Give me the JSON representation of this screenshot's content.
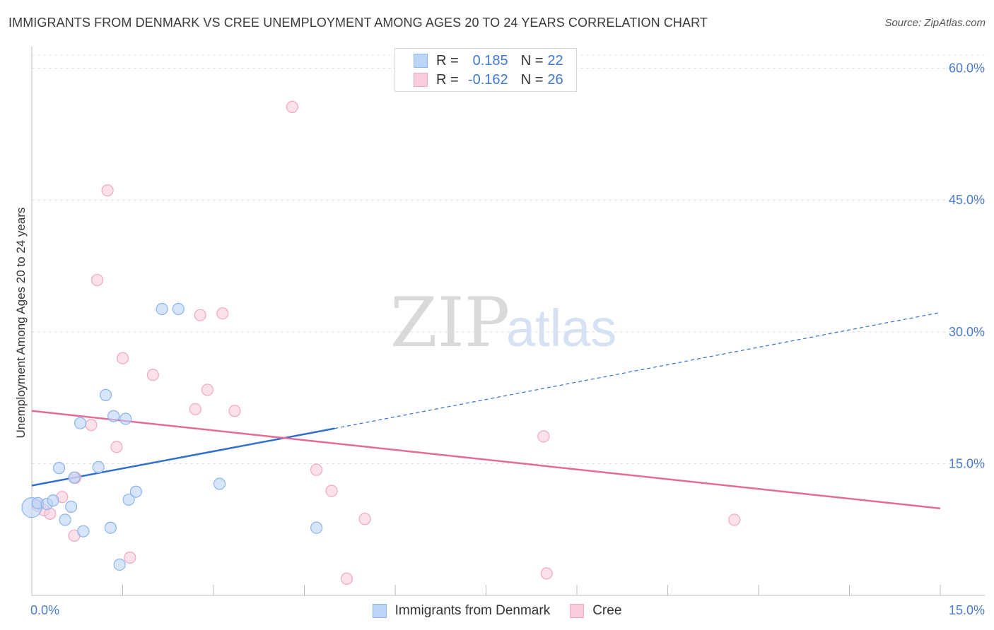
{
  "title": "IMMIGRANTS FROM DENMARK VS CREE UNEMPLOYMENT AMONG AGES 20 TO 24 YEARS CORRELATION CHART",
  "source": "Source: ZipAtlas.com",
  "watermark": {
    "zip": "ZIP",
    "atlas": "atlas"
  },
  "legend": {
    "r_label": "R =",
    "n_label": "N =",
    "rows": [
      {
        "r": "0.185",
        "n": "22"
      },
      {
        "r": "-0.162",
        "n": "26"
      }
    ]
  },
  "chart_data": {
    "type": "scatter",
    "title": "IMMIGRANTS FROM DENMARK VS CREE UNEMPLOYMENT AMONG AGES 20 TO 24 YEARS CORRELATION CHART",
    "xlabel": "",
    "ylabel": "Unemployment Among Ages 20 to 24 years",
    "xlim": [
      0,
      15
    ],
    "ylim": [
      0,
      61.5
    ],
    "x_tick_labels": [
      {
        "value": 0,
        "label": "0.0%"
      },
      {
        "value": 15,
        "label": "15.0%"
      }
    ],
    "y_tick_labels": [
      {
        "value": 15,
        "label": "15.0%"
      },
      {
        "value": 30,
        "label": "30.0%"
      },
      {
        "value": 45,
        "label": "45.0%"
      },
      {
        "value": 60,
        "label": "60.0%"
      }
    ],
    "x_minor_ticks": [
      1.5,
      3,
      4.5,
      6,
      7.5,
      9,
      10.5,
      12,
      13.5,
      15
    ],
    "grid": "horizontal dashed",
    "series": [
      {
        "name": "Immigrants from Denmark",
        "color": "#8ab4ee",
        "fill": "#bcd4f6",
        "line_color": "#2f6fd0",
        "points": [
          [
            0.0,
            10.0
          ],
          [
            0.1,
            10.5
          ],
          [
            0.25,
            10.4
          ],
          [
            0.35,
            10.8
          ],
          [
            0.45,
            14.5
          ],
          [
            0.55,
            8.6
          ],
          [
            0.65,
            10.1
          ],
          [
            0.8,
            19.6
          ],
          [
            0.85,
            7.3
          ],
          [
            0.7,
            13.4
          ],
          [
            1.1,
            14.6
          ],
          [
            1.22,
            22.8
          ],
          [
            1.3,
            7.7
          ],
          [
            1.35,
            20.4
          ],
          [
            1.45,
            3.5
          ],
          [
            1.55,
            20.1
          ],
          [
            1.6,
            10.9
          ],
          [
            1.72,
            11.8
          ],
          [
            2.15,
            32.6
          ],
          [
            2.42,
            32.6
          ],
          [
            3.1,
            12.7
          ],
          [
            4.7,
            7.7
          ]
        ],
        "trend": {
          "x0": 0,
          "y0": 12.5,
          "x1": 5.0,
          "y1": 19.0,
          "dash_to_x": 15.0,
          "dash_to_y": 32.2
        }
      },
      {
        "name": "Cree",
        "color": "#f2a7bd",
        "fill": "#f9cdda",
        "line_color": "#e46a97",
        "points": [
          [
            0.1,
            10.2
          ],
          [
            0.2,
            9.7
          ],
          [
            0.3,
            9.3
          ],
          [
            0.5,
            11.2
          ],
          [
            0.7,
            6.8
          ],
          [
            0.98,
            19.4
          ],
          [
            0.72,
            13.4
          ],
          [
            1.08,
            35.9
          ],
          [
            1.25,
            46.1
          ],
          [
            1.4,
            16.9
          ],
          [
            1.5,
            27.0
          ],
          [
            1.62,
            4.3
          ],
          [
            2.0,
            25.1
          ],
          [
            2.7,
            21.2
          ],
          [
            2.78,
            31.9
          ],
          [
            2.9,
            23.4
          ],
          [
            3.15,
            32.1
          ],
          [
            3.35,
            21.0
          ],
          [
            4.3,
            55.6
          ],
          [
            4.7,
            14.3
          ],
          [
            4.95,
            11.9
          ],
          [
            5.2,
            1.9
          ],
          [
            5.5,
            8.7
          ],
          [
            8.45,
            18.1
          ],
          [
            8.5,
            2.5
          ],
          [
            11.6,
            8.6
          ]
        ],
        "trend": {
          "x0": 0,
          "y0": 21.0,
          "x1": 15.0,
          "y1": 9.9
        }
      }
    ]
  },
  "bottom_legend": [
    {
      "label": "Immigrants from Denmark"
    },
    {
      "label": "Cree"
    }
  ],
  "colors": {
    "blue_accent": "#4a7cc9",
    "grid": "#dedede"
  }
}
